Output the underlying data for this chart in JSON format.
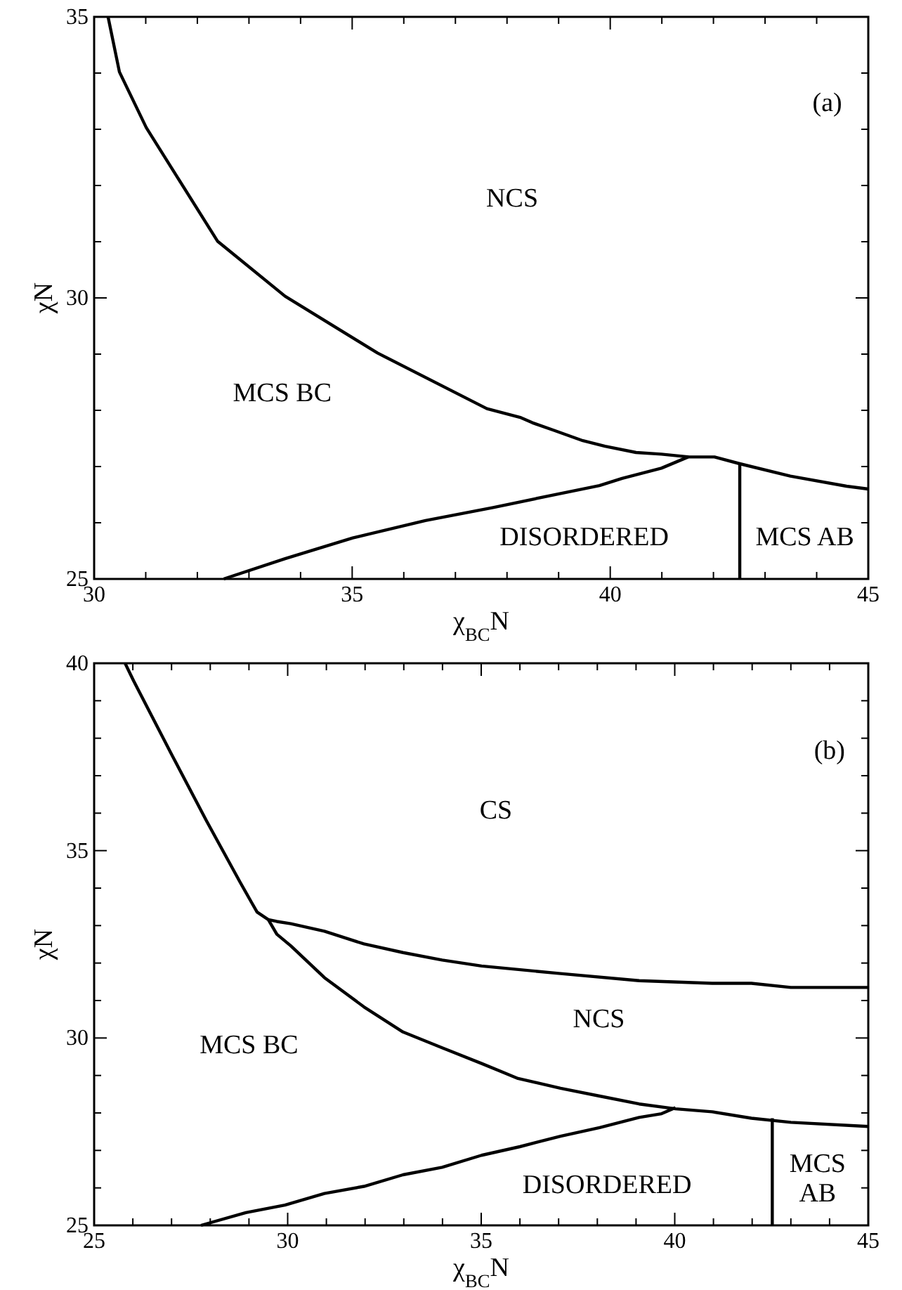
{
  "chart_data": [
    {
      "type": "line",
      "xlabel": "χ$_{BC}$N",
      "ylabel": "χN",
      "xlim": [
        30,
        45
      ],
      "ylim": [
        25,
        35
      ],
      "xticks": [
        30,
        {
          "value": 31,
          "label": null
        },
        {
          "value": 32,
          "label": null
        },
        {
          "value": 33,
          "label": null
        },
        {
          "value": 34,
          "label": null
        },
        35,
        {
          "value": 36,
          "label": null
        },
        {
          "value": 37,
          "label": null
        },
        {
          "value": 38,
          "label": null
        },
        {
          "value": 39,
          "label": null
        },
        40,
        {
          "value": 41,
          "label": null
        },
        {
          "value": 42,
          "label": null
        },
        {
          "value": 43,
          "label": null
        },
        {
          "value": 44,
          "label": null
        },
        45
      ],
      "yticks": [
        25,
        {
          "value": 26,
          "label": null
        },
        {
          "value": 27,
          "label": null
        },
        {
          "value": 28,
          "label": null
        },
        {
          "value": 29,
          "label": null
        },
        30,
        {
          "value": 31,
          "label": null
        },
        {
          "value": 32,
          "label": null
        },
        {
          "value": 33,
          "label": null
        },
        {
          "value": 34,
          "label": null
        },
        35
      ],
      "marker": "none",
      "line_style": "solid",
      "series": [
        {
          "color": "#000000",
          "x": [
            30.27,
            30.49,
            31.01,
            32.39,
            33.7,
            35.49,
            37.61,
            38.27,
            38.49,
            38.92,
            39.47,
            39.9,
            40.5,
            40.99,
            41.53,
            42.02,
            42.51,
            43.49,
            44.58,
            45
          ],
          "values": [
            35,
            34.02,
            33.03,
            31.01,
            30.03,
            29.02,
            28.03,
            27.87,
            27.78,
            27.64,
            27.46,
            27.36,
            27.25,
            27.22,
            27.17,
            27.17,
            27.05,
            26.83,
            26.65,
            26.6
          ]
        },
        {
          "color": "#000000",
          "x": [
            32.51,
            33.7,
            35.01,
            36.42,
            37.73,
            39.14,
            39.79,
            40.23,
            40.99,
            41.51
          ],
          "values": [
            25,
            25.36,
            25.73,
            26.04,
            26.27,
            26.54,
            26.66,
            26.79,
            26.97,
            27.17
          ]
        },
        {
          "color": "#000000",
          "x": [
            42.51,
            42.51
          ],
          "values": [
            27.05,
            25
          ]
        }
      ],
      "annotations": [
        "NCS",
        "MCS BC",
        "DISORDERED",
        "MCS AB",
        "(a)"
      ]
    },
    {
      "type": "line",
      "xlabel": "χ$_{BC}$N",
      "ylabel": "χN",
      "xlim": [
        25,
        45
      ],
      "ylim": [
        25,
        40
      ],
      "xticks": [
        25,
        {
          "value": 26,
          "label": null
        },
        {
          "value": 27,
          "label": null
        },
        {
          "value": 28,
          "label": null
        },
        {
          "value": 29,
          "label": null
        },
        30,
        {
          "value": 31,
          "label": null
        },
        {
          "value": 32,
          "label": null
        },
        {
          "value": 33,
          "label": null
        },
        {
          "value": 34,
          "label": null
        },
        35,
        {
          "value": 36,
          "label": null
        },
        {
          "value": 37,
          "label": null
        },
        {
          "value": 38,
          "label": null
        },
        {
          "value": 39,
          "label": null
        },
        40,
        {
          "value": 41,
          "label": null
        },
        {
          "value": 42,
          "label": null
        },
        {
          "value": 43,
          "label": null
        },
        {
          "value": 44,
          "label": null
        },
        45
      ],
      "yticks": [
        25,
        {
          "value": 26,
          "label": null
        },
        {
          "value": 27,
          "label": null
        },
        {
          "value": 28,
          "label": null
        },
        {
          "value": 29,
          "label": null
        },
        30,
        {
          "value": 31,
          "label": null
        },
        {
          "value": 32,
          "label": null
        },
        {
          "value": 33,
          "label": null
        },
        {
          "value": 34,
          "label": null
        },
        35,
        {
          "value": 36,
          "label": null
        },
        {
          "value": 37,
          "label": null
        },
        {
          "value": 38,
          "label": null
        },
        {
          "value": 39,
          "label": null
        },
        40
      ],
      "marker": "none",
      "line_style": "solid",
      "series": [
        {
          "color": "#000000",
          "x": [
            25.8,
            26.02,
            27.03,
            27.9,
            28.77,
            29.06,
            29.21,
            29.5,
            29.72,
            30.08,
            30.95,
            31.97,
            32.98,
            33.99,
            35.01,
            35.95,
            37.05,
            38.06,
            39.08,
            40.02,
            40.97,
            41.98,
            43,
            45
          ],
          "values": [
            40,
            39.53,
            37.51,
            35.8,
            34.16,
            33.63,
            33.36,
            33.16,
            32.77,
            32.46,
            31.61,
            30.83,
            30.16,
            29.74,
            29.32,
            28.92,
            28.66,
            28.45,
            28.24,
            28.11,
            28.03,
            27.86,
            27.75,
            27.64
          ]
        },
        {
          "color": "#000000",
          "x": [
            29.5,
            29.72,
            30.08,
            30.95,
            31.97,
            32.98,
            33.99,
            35.01,
            37.05,
            39.08,
            40.97,
            41.98,
            43,
            45
          ],
          "values": [
            33.16,
            33.11,
            33.05,
            32.85,
            32.51,
            32.28,
            32.08,
            31.92,
            31.72,
            31.53,
            31.46,
            31.46,
            31.35,
            31.35
          ]
        },
        {
          "color": "#000000",
          "x": [
            27.76,
            28.92,
            29.93,
            30.95,
            31.97,
            32.98,
            33.99,
            35.01,
            36,
            37.05,
            38.06,
            39.08,
            39.66,
            40.02
          ],
          "values": [
            25,
            25.34,
            25.54,
            25.85,
            26.04,
            26.35,
            26.55,
            26.87,
            27.1,
            27.38,
            27.61,
            27.88,
            27.98,
            28.14
          ]
        },
        {
          "color": "#000000",
          "x": [
            42.52,
            42.52
          ],
          "values": [
            27.86,
            25
          ]
        }
      ],
      "annotations": [
        "CS",
        "NCS",
        "MCS BC",
        "DISORDERED",
        "MCS\nAB",
        "(b)"
      ]
    }
  ]
}
